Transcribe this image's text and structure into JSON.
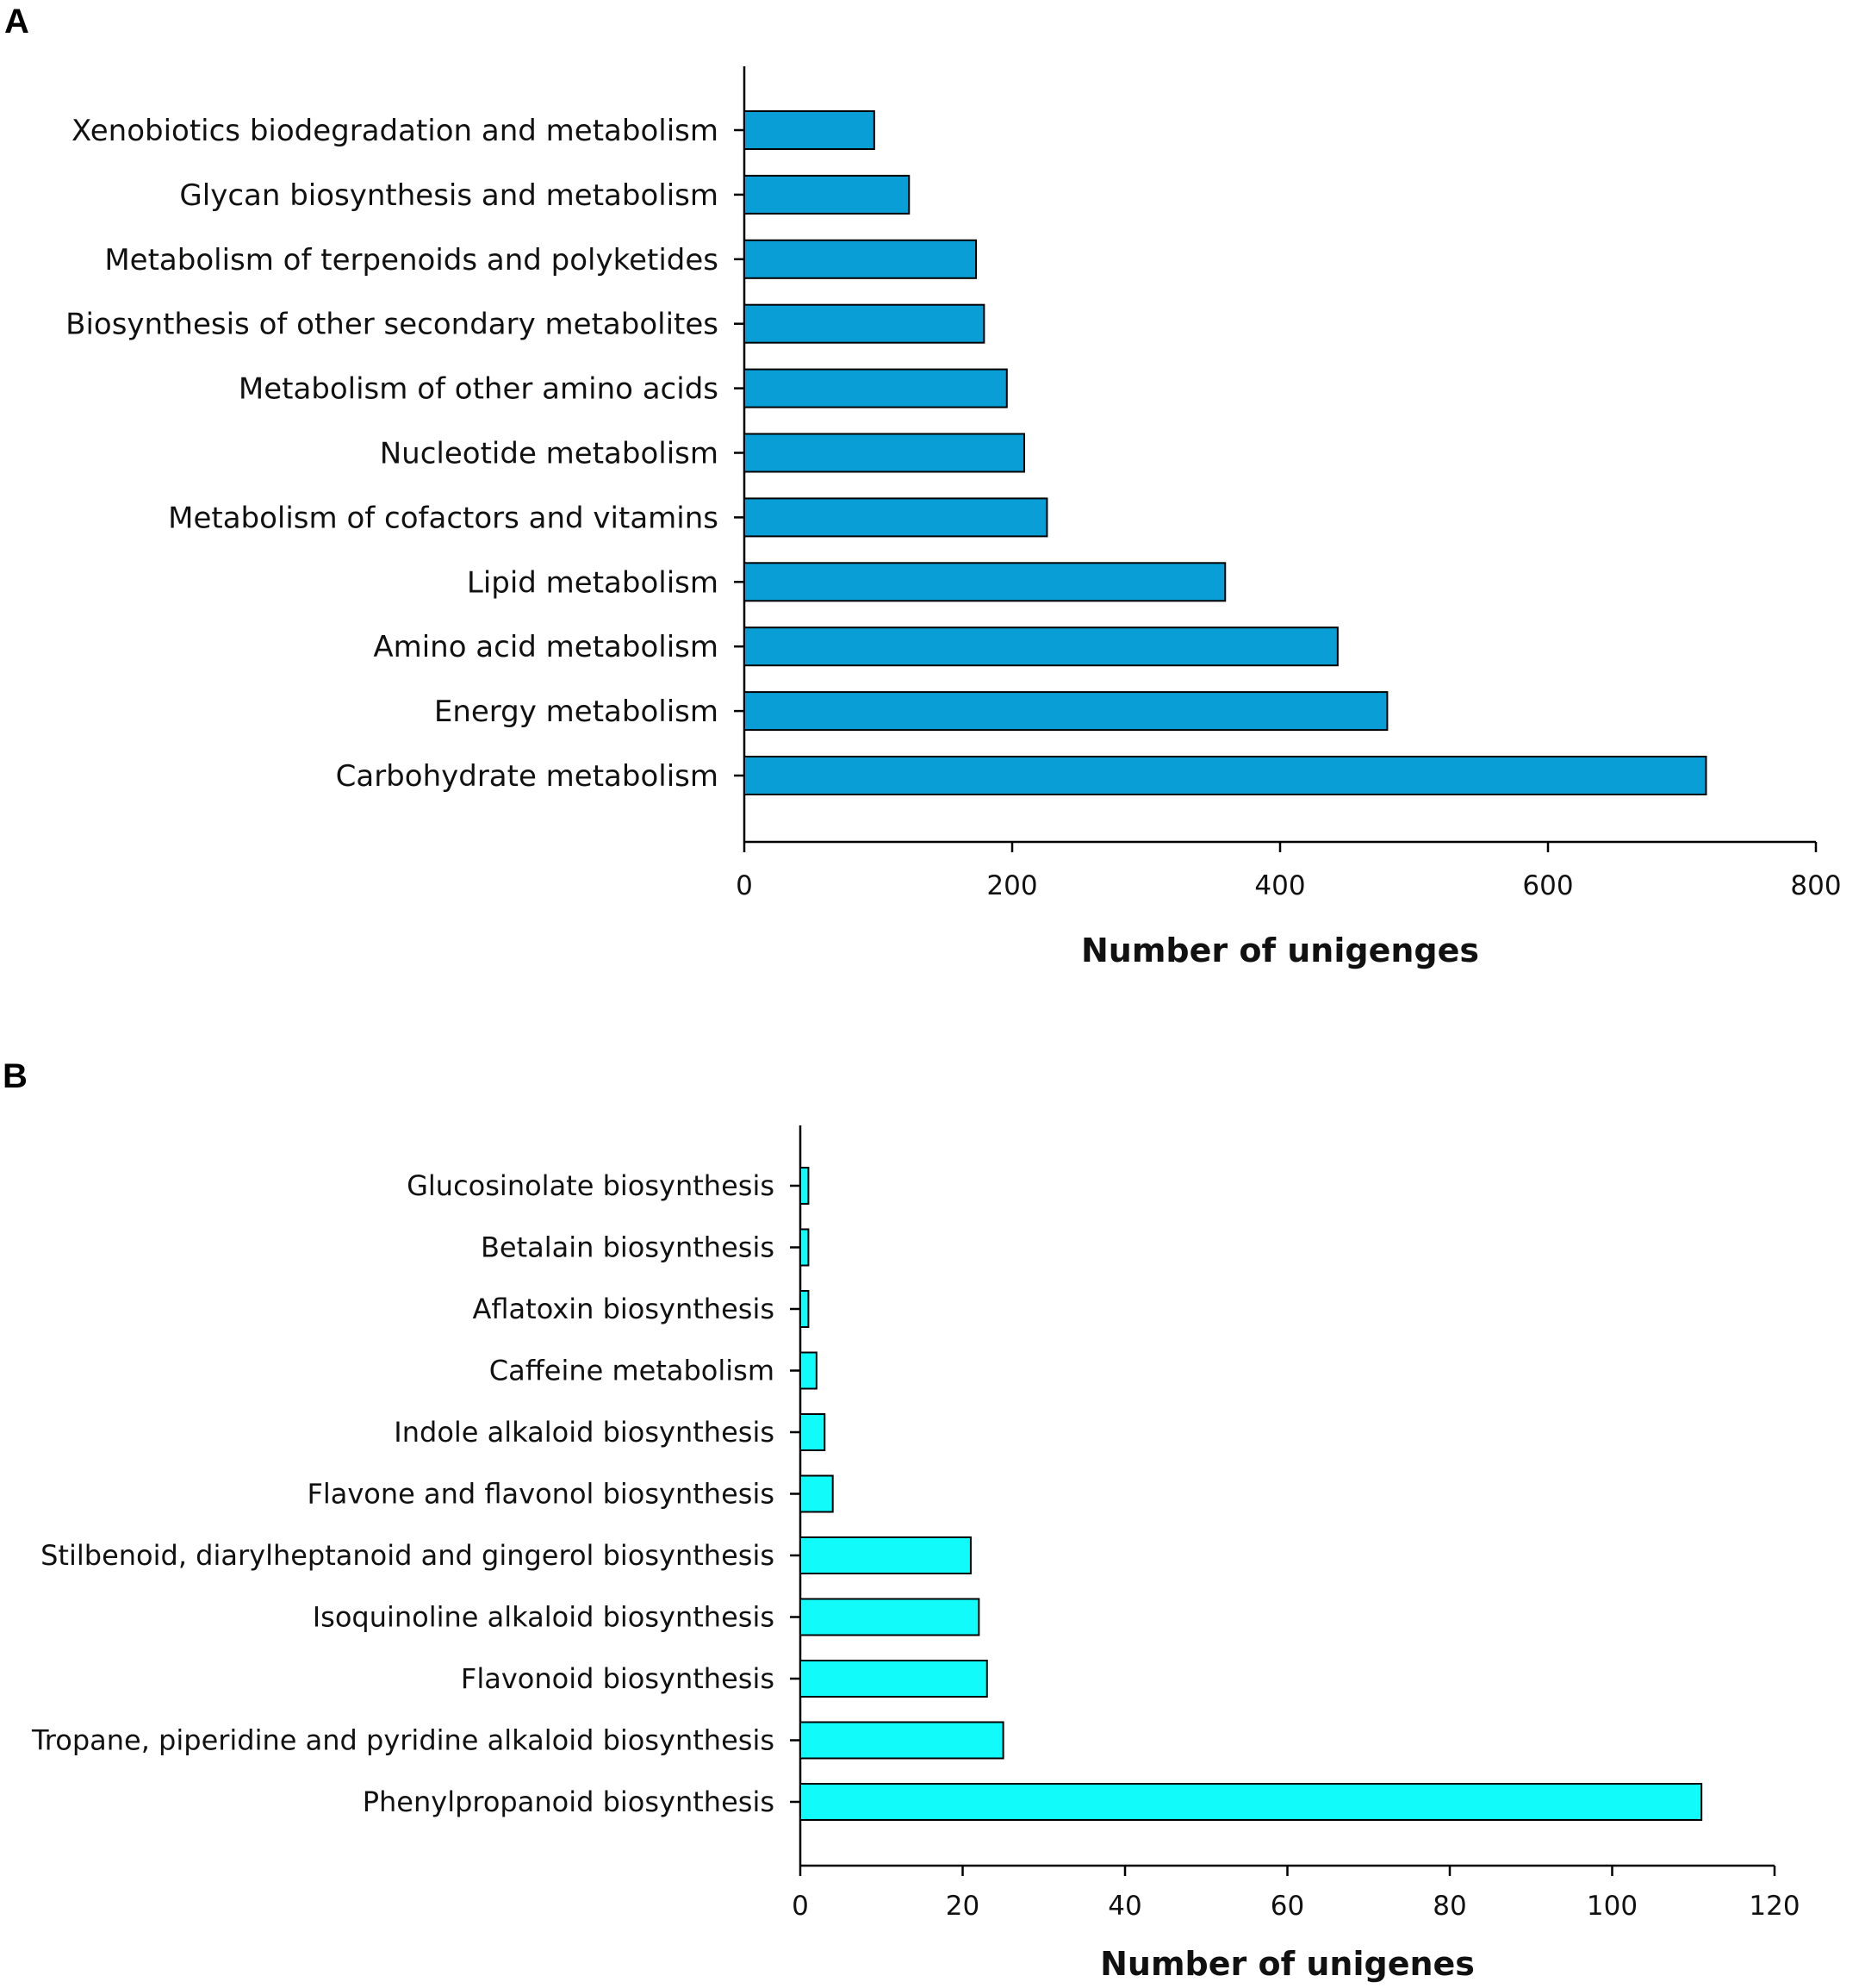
{
  "chart_data": [
    {
      "panel": "A",
      "type": "bar",
      "orientation": "horizontal",
      "title": "",
      "xlabel": "Number of unigenges",
      "ylabel": "",
      "xlim": [
        0,
        800
      ],
      "xticks": [
        0,
        200,
        400,
        600,
        800
      ],
      "bar_color": "#0a9ed6",
      "categories": [
        "Xenobiotics biodegradation and metabolism",
        "Glycan biosynthesis and metabolism",
        "Metabolism of terpenoids and polyketides",
        "Biosynthesis of other secondary metabolites",
        "Metabolism of other amino acids",
        "Nucleotide metabolism",
        "Metabolism of cofactors and vitamins",
        "Lipid metabolism",
        "Amino acid metabolism",
        "Energy metabolism",
        "Carbohydrate metabolism"
      ],
      "values": [
        97,
        123,
        173,
        179,
        196,
        209,
        226,
        359,
        443,
        480,
        718
      ]
    },
    {
      "panel": "B",
      "type": "bar",
      "orientation": "horizontal",
      "title": "",
      "xlabel": "Number of unigenes",
      "ylabel": "",
      "xlim": [
        0,
        120
      ],
      "xticks": [
        0,
        20,
        40,
        60,
        80,
        100,
        120
      ],
      "bar_color": "#12fbfb",
      "categories": [
        "Glucosinolate biosynthesis",
        "Betalain biosynthesis",
        "Aflatoxin biosynthesis",
        "Caffeine metabolism",
        "Indole alkaloid biosynthesis",
        "Flavone and flavonol biosynthesis",
        "Stilbenoid, diarylheptanoid and gingerol biosynthesis",
        "Isoquinoline alkaloid biosynthesis",
        "Flavonoid biosynthesis",
        "Tropane, piperidine and pyridine alkaloid biosynthesis",
        "Phenylpropanoid biosynthesis"
      ],
      "values": [
        1,
        1,
        1,
        2,
        3,
        4,
        21,
        22,
        23,
        25,
        111
      ]
    }
  ]
}
